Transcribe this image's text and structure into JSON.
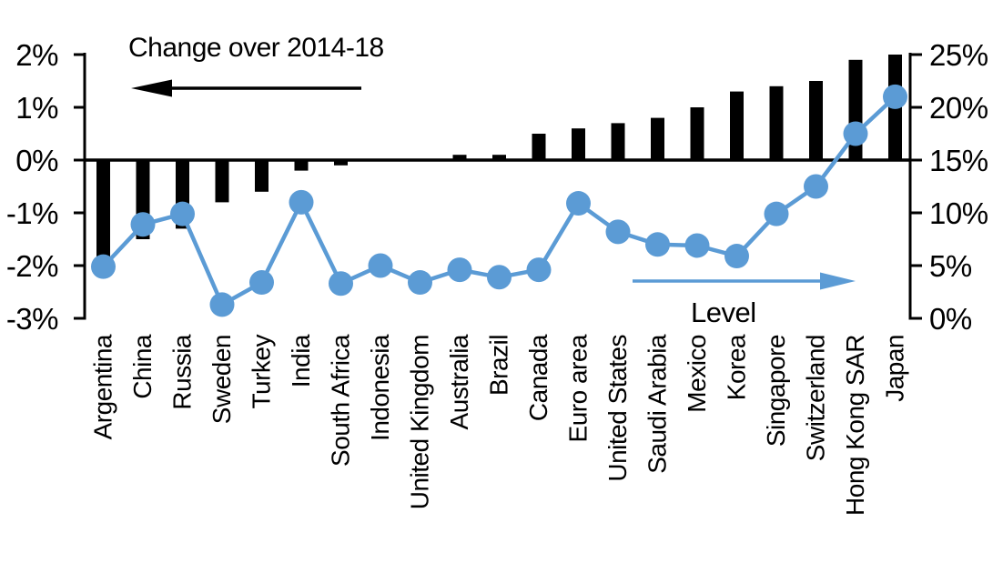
{
  "chart_data": {
    "type": "combo-bar-line",
    "title": "",
    "categories": [
      "Argentina",
      "China",
      "Russia",
      "Sweden",
      "Turkey",
      "India",
      "South Africa",
      "Indonesia",
      "United Kingdom",
      "Australia",
      "Brazil",
      "Canada",
      "Euro area",
      "United States",
      "Saudi Arabia",
      "Mexico",
      "Korea",
      "Singapore",
      "Switzerland",
      "Hong Kong SAR",
      "Japan"
    ],
    "series": [
      {
        "name": "Change over 2014-18",
        "type": "bar",
        "axis": "left",
        "color": "#000000",
        "values": [
          -2.0,
          -1.5,
          -1.3,
          -0.8,
          -0.6,
          -0.2,
          -0.1,
          0.0,
          0.0,
          0.1,
          0.1,
          0.5,
          0.6,
          0.7,
          0.8,
          1.0,
          1.3,
          1.4,
          1.5,
          1.9,
          2.0
        ]
      },
      {
        "name": "Level",
        "type": "line",
        "axis": "right",
        "color": "#5B9BD5",
        "values": [
          4.9,
          8.9,
          9.9,
          1.3,
          3.4,
          11.0,
          3.3,
          5.0,
          3.4,
          4.6,
          3.9,
          4.6,
          10.9,
          8.2,
          7.0,
          6.9,
          5.9,
          9.9,
          12.5,
          17.5,
          21.0
        ]
      }
    ],
    "left_axis": {
      "min": -3,
      "max": 2,
      "tick_step": 1,
      "tick_labels": [
        "2%",
        "1%",
        "0%",
        "-1%",
        "-2%",
        "-3%"
      ],
      "unit": "%"
    },
    "right_axis": {
      "min": 0,
      "max": 25,
      "tick_step": 5,
      "tick_labels": [
        "25%",
        "20%",
        "15%",
        "10%",
        "5%",
        "0%"
      ],
      "unit": "%"
    },
    "annotations": {
      "bar_series_label": "Change over 2014-18",
      "bar_series_arrow": "left",
      "line_series_label": "Level",
      "line_series_arrow": "right"
    },
    "grid": false,
    "legend_position": "in-plot-arrows"
  }
}
